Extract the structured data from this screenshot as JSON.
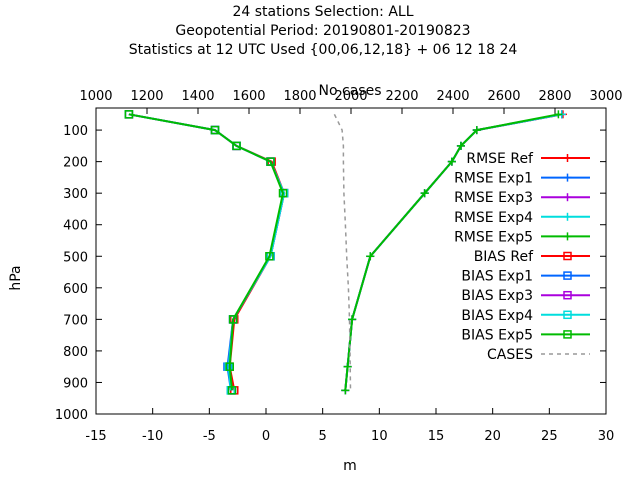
{
  "chart_data": {
    "type": "line",
    "title_lines": [
      "24 stations Selection: ALL",
      "Geopotential  Period: 20190801-20190823",
      "Statistics at 12 UTC  Used {00,06,12,18} + 06 12 18 24"
    ],
    "xlabel": "m",
    "ylabel": "hPa",
    "x2label": "No cases",
    "xlim": [
      -15,
      30
    ],
    "ylim": [
      1000,
      30
    ],
    "y_reversed": true,
    "x2lim": [
      1000,
      3000
    ],
    "xticks": [
      "-15",
      "-10",
      "-5",
      "0",
      "5",
      "10",
      "15",
      "20",
      "25",
      "30"
    ],
    "x2ticks": [
      "1000",
      "1200",
      "1400",
      "1600",
      "1800",
      "2000",
      "2200",
      "2400",
      "2600",
      "2800",
      "3000"
    ],
    "yticks": [
      "100",
      "200",
      "300",
      "400",
      "500",
      "600",
      "700",
      "800",
      "900",
      "1000"
    ],
    "legend_position": "top-right",
    "levels": [
      50,
      100,
      150,
      200,
      300,
      500,
      700,
      850,
      925
    ],
    "series": [
      {
        "name": "RMSE Ref",
        "color": "#ff0000",
        "marker": "plus",
        "axis": "x1",
        "values": [
          26.2,
          18.6,
          17.2,
          16.4,
          14.0,
          9.2,
          7.6,
          7.2,
          7.0
        ]
      },
      {
        "name": "RMSE Exp1",
        "color": "#0066ff",
        "marker": "plus",
        "axis": "x1",
        "values": [
          26.1,
          18.6,
          17.2,
          16.4,
          14.0,
          9.2,
          7.6,
          7.2,
          7.0
        ]
      },
      {
        "name": "RMSE Exp3",
        "color": "#aa00dd",
        "marker": "plus",
        "axis": "x1",
        "values": [
          26.1,
          18.6,
          17.2,
          16.4,
          14.0,
          9.2,
          7.6,
          7.2,
          7.0
        ]
      },
      {
        "name": "RMSE Exp4",
        "color": "#00dddd",
        "marker": "plus",
        "axis": "x1",
        "values": [
          26.1,
          18.6,
          17.2,
          16.4,
          14.0,
          9.2,
          7.6,
          7.2,
          7.0
        ]
      },
      {
        "name": "RMSE Exp5",
        "color": "#00bb00",
        "marker": "plus",
        "axis": "x1",
        "values": [
          25.8,
          18.6,
          17.2,
          16.4,
          14.0,
          9.2,
          7.6,
          7.2,
          7.0
        ]
      },
      {
        "name": "BIAS Ref",
        "color": "#ff0000",
        "marker": "square",
        "axis": "x1",
        "values": [
          -12.1,
          -4.5,
          -2.6,
          0.5,
          1.6,
          0.4,
          -2.8,
          -3.2,
          -2.8
        ]
      },
      {
        "name": "BIAS Exp1",
        "color": "#0066ff",
        "marker": "square",
        "axis": "x1",
        "values": [
          -12.1,
          -4.5,
          -2.6,
          0.4,
          1.6,
          0.4,
          -2.9,
          -3.4,
          -3.1
        ]
      },
      {
        "name": "BIAS Exp3",
        "color": "#aa00dd",
        "marker": "square",
        "axis": "x1",
        "values": [
          -12.1,
          -4.5,
          -2.6,
          0.4,
          1.6,
          0.4,
          -2.9,
          -3.3,
          -3.0
        ]
      },
      {
        "name": "BIAS Exp4",
        "color": "#00dddd",
        "marker": "square",
        "axis": "x1",
        "values": [
          -12.1,
          -4.5,
          -2.6,
          0.4,
          1.6,
          0.4,
          -2.9,
          -3.3,
          -3.1
        ]
      },
      {
        "name": "BIAS Exp5",
        "color": "#00bb00",
        "marker": "square",
        "axis": "x1",
        "values": [
          -12.1,
          -4.5,
          -2.6,
          0.4,
          1.5,
          0.3,
          -2.9,
          -3.2,
          -3.0
        ]
      },
      {
        "name": "CASES",
        "color": "#999999",
        "marker": "none",
        "dashed": true,
        "axis": "x2",
        "points": [
          [
            1935,
            50
          ],
          [
            1950,
            75
          ],
          [
            1965,
            100
          ],
          [
            1970,
            150
          ],
          [
            1970,
            200
          ],
          [
            1972,
            300
          ],
          [
            1978,
            400
          ],
          [
            1983,
            500
          ],
          [
            1990,
            600
          ],
          [
            1994,
            700
          ],
          [
            1996,
            800
          ],
          [
            1998,
            925
          ]
        ]
      }
    ]
  }
}
